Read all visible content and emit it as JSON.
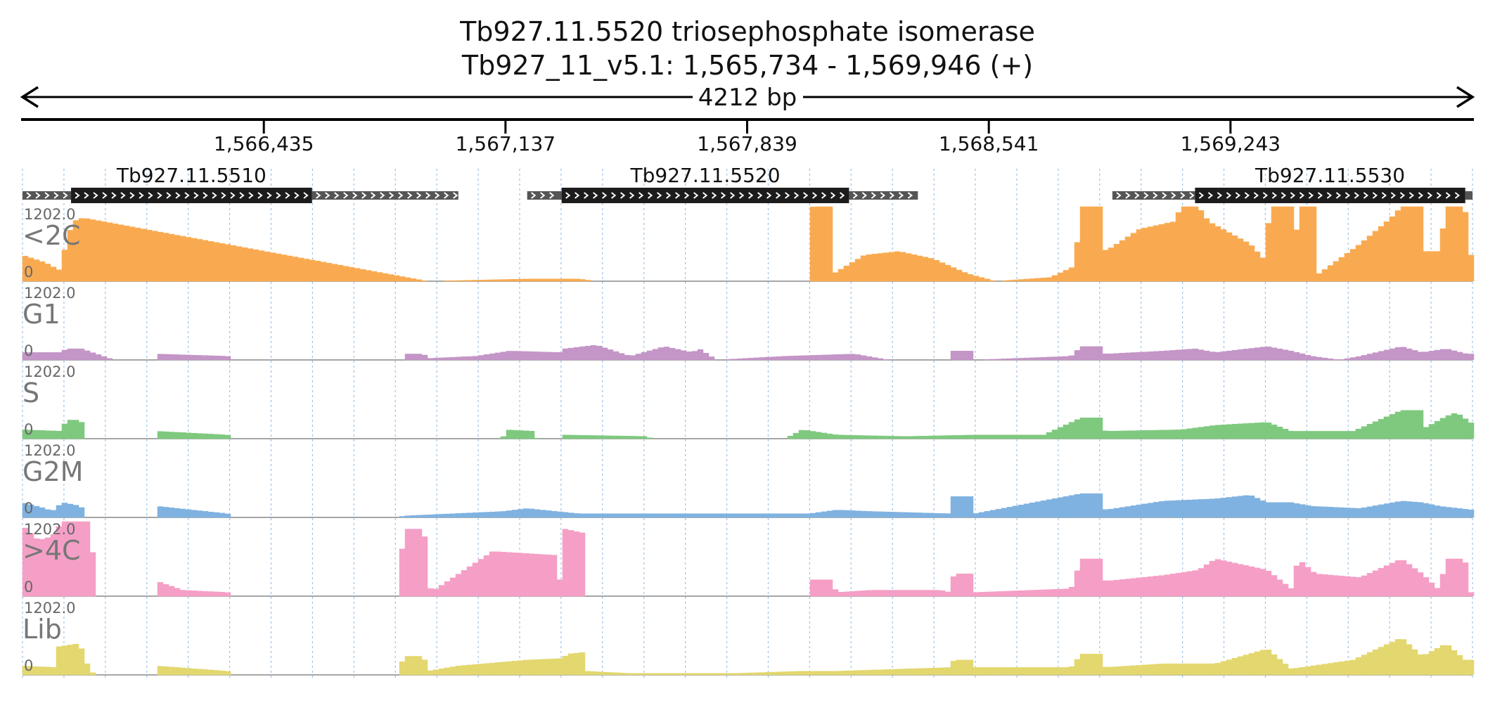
{
  "header": {
    "title": "Tb927.11.5520  triosephosphate isomerase",
    "location": "Tb927_11_v5.1: 1,565,734 - 1,569,946 (+)",
    "span_label": "4212 bp"
  },
  "ruler": {
    "start": 1565734,
    "end": 1569946,
    "ticks": [
      {
        "pos": 1566435,
        "label": "1,566,435"
      },
      {
        "pos": 1567137,
        "label": "1,567,137"
      },
      {
        "pos": 1567839,
        "label": "1,567,839"
      },
      {
        "pos": 1568541,
        "label": "1,568,541"
      },
      {
        "pos": 1569243,
        "label": "1,569,243"
      }
    ]
  },
  "genes": [
    {
      "name": "Tb927.11.5510",
      "utr5": [
        1565734,
        1565875
      ],
      "cds": [
        1565875,
        1566575
      ],
      "utr3": [
        1566575,
        1567000
      ]
    },
    {
      "name": "Tb927.11.5520",
      "utr5": [
        1567200,
        1567300
      ],
      "cds": [
        1567300,
        1568135
      ],
      "utr3": [
        1568135,
        1568335
      ]
    },
    {
      "name": "Tb927.11.5530",
      "utr5": [
        1568900,
        1569140
      ],
      "cds": [
        1569140,
        1569925
      ],
      "utr3": [
        1569925,
        1569946
      ]
    }
  ],
  "tracks_max_label": "1202.0",
  "tracks_zero_label": "0",
  "tracks": [
    {
      "name": "<2C",
      "color": "#f9aa50",
      "level": 1,
      "series": [
        [
          1565734,
          0.35
        ],
        [
          1565800,
          0.25
        ],
        [
          1565840,
          0.15
        ],
        [
          1565880,
          0.8
        ],
        [
          1565910,
          0.85
        ],
        [
          1566910,
          0.0
        ],
        [
          1567200,
          0.03
        ],
        [
          1567350,
          0.03
        ],
        [
          1567400,
          0.0
        ],
        [
          1568020,
          0.0
        ],
        [
          1568030,
          1.0
        ],
        [
          1568085,
          1.0
        ],
        [
          1568090,
          0.1
        ],
        [
          1568180,
          0.35
        ],
        [
          1568280,
          0.4
        ],
        [
          1568380,
          0.3
        ],
        [
          1568480,
          0.1
        ],
        [
          1568560,
          0.0
        ],
        [
          1568720,
          0.05
        ],
        [
          1568790,
          0.2
        ],
        [
          1568810,
          1.0
        ],
        [
          1568870,
          1.0
        ],
        [
          1568880,
          0.4
        ],
        [
          1568980,
          0.7
        ],
        [
          1569080,
          0.8
        ],
        [
          1569100,
          1.0
        ],
        [
          1569150,
          1.0
        ],
        [
          1569180,
          0.8
        ],
        [
          1569300,
          0.5
        ],
        [
          1569340,
          0.3
        ],
        [
          1569360,
          1.0
        ],
        [
          1569420,
          1.0
        ],
        [
          1569425,
          0.0
        ],
        [
          1569440,
          1.0
        ],
        [
          1569490,
          1.0
        ],
        [
          1569500,
          0.1
        ],
        [
          1569620,
          0.5
        ],
        [
          1569710,
          0.85
        ],
        [
          1569740,
          1.0
        ],
        [
          1569800,
          1.0
        ],
        [
          1569810,
          0.4
        ],
        [
          1569850,
          0.4
        ],
        [
          1569870,
          1.0
        ],
        [
          1569925,
          1.0
        ],
        [
          1569930,
          0.35
        ],
        [
          1569946,
          0.35
        ]
      ]
    },
    {
      "name": "G1",
      "color": "#c495c7",
      "level": 0.2,
      "series": [
        [
          1565734,
          0.1
        ],
        [
          1565850,
          0.1
        ],
        [
          1565860,
          0.15
        ],
        [
          1565905,
          0.15
        ],
        [
          1566000,
          0.0
        ],
        [
          1566120,
          0.0
        ],
        [
          1566125,
          0.08
        ],
        [
          1566330,
          0.05
        ],
        [
          1566340,
          0.0
        ],
        [
          1566840,
          0.0
        ],
        [
          1566850,
          0.08
        ],
        [
          1566900,
          0.08
        ],
        [
          1566910,
          0.02
        ],
        [
          1567050,
          0.05
        ],
        [
          1567150,
          0.12
        ],
        [
          1567300,
          0.1
        ],
        [
          1567310,
          0.15
        ],
        [
          1567400,
          0.2
        ],
        [
          1567500,
          0.05
        ],
        [
          1567600,
          0.18
        ],
        [
          1567680,
          0.1
        ],
        [
          1567700,
          0.15
        ],
        [
          1567750,
          0.0
        ],
        [
          1567950,
          0.05
        ],
        [
          1568150,
          0.08
        ],
        [
          1568250,
          0.0
        ],
        [
          1568430,
          0.0
        ],
        [
          1568435,
          0.12
        ],
        [
          1568490,
          0.12
        ],
        [
          1568500,
          0.0
        ],
        [
          1568780,
          0.05
        ],
        [
          1568810,
          0.18
        ],
        [
          1568870,
          0.18
        ],
        [
          1568880,
          0.08
        ],
        [
          1569050,
          0.12
        ],
        [
          1569140,
          0.15
        ],
        [
          1569200,
          0.1
        ],
        [
          1569350,
          0.18
        ],
        [
          1569420,
          0.12
        ],
        [
          1569480,
          0.05
        ],
        [
          1569560,
          0.0
        ],
        [
          1569620,
          0.05
        ],
        [
          1569740,
          0.18
        ],
        [
          1569800,
          0.1
        ],
        [
          1569870,
          0.15
        ],
        [
          1569930,
          0.08
        ],
        [
          1569946,
          0.08
        ]
      ]
    },
    {
      "name": "S",
      "color": "#7fc97f",
      "level": 0.2,
      "series": [
        [
          1565734,
          0.12
        ],
        [
          1565850,
          0.1
        ],
        [
          1565860,
          0.25
        ],
        [
          1565905,
          0.25
        ],
        [
          1565910,
          0.0
        ],
        [
          1566120,
          0.0
        ],
        [
          1566125,
          0.1
        ],
        [
          1566330,
          0.05
        ],
        [
          1566340,
          0.0
        ],
        [
          1567130,
          0.0
        ],
        [
          1567135,
          0.12
        ],
        [
          1567220,
          0.1
        ],
        [
          1567230,
          0.0
        ],
        [
          1567300,
          0.0
        ],
        [
          1567305,
          0.05
        ],
        [
          1567550,
          0.03
        ],
        [
          1567560,
          0.0
        ],
        [
          1567950,
          0.0
        ],
        [
          1568000,
          0.12
        ],
        [
          1568100,
          0.05
        ],
        [
          1568300,
          0.03
        ],
        [
          1568500,
          0.05
        ],
        [
          1568700,
          0.05
        ],
        [
          1568810,
          0.28
        ],
        [
          1568870,
          0.28
        ],
        [
          1568880,
          0.1
        ],
        [
          1569100,
          0.12
        ],
        [
          1569200,
          0.18
        ],
        [
          1569350,
          0.22
        ],
        [
          1569420,
          0.1
        ],
        [
          1569600,
          0.1
        ],
        [
          1569740,
          0.38
        ],
        [
          1569800,
          0.38
        ],
        [
          1569810,
          0.15
        ],
        [
          1569850,
          0.25
        ],
        [
          1569870,
          0.3
        ],
        [
          1569900,
          0.35
        ],
        [
          1569946,
          0.2
        ]
      ]
    },
    {
      "name": "G2M",
      "color": "#7fb2e0",
      "level": 0.2,
      "series": [
        [
          1565734,
          0.2
        ],
        [
          1565800,
          0.12
        ],
        [
          1565820,
          0.08
        ],
        [
          1565850,
          0.2
        ],
        [
          1565905,
          0.15
        ],
        [
          1565910,
          0.0
        ],
        [
          1566120,
          0.0
        ],
        [
          1566125,
          0.15
        ],
        [
          1566330,
          0.05
        ],
        [
          1566340,
          0.0
        ],
        [
          1566830,
          0.0
        ],
        [
          1566840,
          0.02
        ],
        [
          1567130,
          0.08
        ],
        [
          1567200,
          0.12
        ],
        [
          1567350,
          0.05
        ],
        [
          1568020,
          0.05
        ],
        [
          1568100,
          0.1
        ],
        [
          1568200,
          0.08
        ],
        [
          1568430,
          0.05
        ],
        [
          1568435,
          0.28
        ],
        [
          1568490,
          0.28
        ],
        [
          1568500,
          0.05
        ],
        [
          1568810,
          0.32
        ],
        [
          1568870,
          0.32
        ],
        [
          1568880,
          0.1
        ],
        [
          1569050,
          0.22
        ],
        [
          1569200,
          0.25
        ],
        [
          1569300,
          0.3
        ],
        [
          1569350,
          0.2
        ],
        [
          1569420,
          0.2
        ],
        [
          1569480,
          0.15
        ],
        [
          1569620,
          0.12
        ],
        [
          1569740,
          0.22
        ],
        [
          1569800,
          0.2
        ],
        [
          1569850,
          0.15
        ],
        [
          1569946,
          0.1
        ]
      ]
    },
    {
      "name": ">4C",
      "color": "#f59fc6",
      "level": 1,
      "series": [
        [
          1565734,
          0.95
        ],
        [
          1565780,
          0.75
        ],
        [
          1565820,
          0.8
        ],
        [
          1565850,
          1.0
        ],
        [
          1565930,
          1.0
        ],
        [
          1565950,
          0.0
        ],
        [
          1566120,
          0.0
        ],
        [
          1566125,
          0.2
        ],
        [
          1566200,
          0.08
        ],
        [
          1566330,
          0.05
        ],
        [
          1566340,
          0.0
        ],
        [
          1566830,
          0.0
        ],
        [
          1566840,
          0.9
        ],
        [
          1566900,
          0.9
        ],
        [
          1566920,
          0.05
        ],
        [
          1567100,
          0.6
        ],
        [
          1567280,
          0.55
        ],
        [
          1567300,
          0.1
        ],
        [
          1567310,
          0.9
        ],
        [
          1567360,
          0.85
        ],
        [
          1567370,
          0.0
        ],
        [
          1568020,
          0.0
        ],
        [
          1568030,
          0.22
        ],
        [
          1568080,
          0.22
        ],
        [
          1568100,
          0.05
        ],
        [
          1568200,
          0.08
        ],
        [
          1568400,
          0.08
        ],
        [
          1568430,
          0.05
        ],
        [
          1568440,
          0.3
        ],
        [
          1568490,
          0.3
        ],
        [
          1568500,
          0.05
        ],
        [
          1568780,
          0.1
        ],
        [
          1568810,
          0.5
        ],
        [
          1568870,
          0.5
        ],
        [
          1568880,
          0.2
        ],
        [
          1569050,
          0.28
        ],
        [
          1569150,
          0.35
        ],
        [
          1569200,
          0.5
        ],
        [
          1569350,
          0.35
        ],
        [
          1569420,
          0.1
        ],
        [
          1569440,
          0.5
        ],
        [
          1569490,
          0.3
        ],
        [
          1569620,
          0.25
        ],
        [
          1569740,
          0.5
        ],
        [
          1569800,
          0.3
        ],
        [
          1569850,
          0.08
        ],
        [
          1569870,
          0.5
        ],
        [
          1569925,
          0.5
        ],
        [
          1569930,
          0.05
        ],
        [
          1569946,
          0.05
        ]
      ]
    },
    {
      "name": "Lib",
      "color": "#e3d76f",
      "level": 0.2,
      "series": [
        [
          1565734,
          0.12
        ],
        [
          1565830,
          0.1
        ],
        [
          1565840,
          0.38
        ],
        [
          1565900,
          0.42
        ],
        [
          1565930,
          0.05
        ],
        [
          1565950,
          0.0
        ],
        [
          1566120,
          0.0
        ],
        [
          1566125,
          0.12
        ],
        [
          1566330,
          0.05
        ],
        [
          1566340,
          0.0
        ],
        [
          1566830,
          0.0
        ],
        [
          1566840,
          0.25
        ],
        [
          1566900,
          0.25
        ],
        [
          1566910,
          0.05
        ],
        [
          1567000,
          0.12
        ],
        [
          1567200,
          0.2
        ],
        [
          1567300,
          0.22
        ],
        [
          1567320,
          0.28
        ],
        [
          1567360,
          0.3
        ],
        [
          1567370,
          0.05
        ],
        [
          1567500,
          0.02
        ],
        [
          1567800,
          0.02
        ],
        [
          1568000,
          0.05
        ],
        [
          1568100,
          0.05
        ],
        [
          1568430,
          0.1
        ],
        [
          1568440,
          0.2
        ],
        [
          1568490,
          0.2
        ],
        [
          1568500,
          0.1
        ],
        [
          1568780,
          0.1
        ],
        [
          1568810,
          0.28
        ],
        [
          1568870,
          0.28
        ],
        [
          1568880,
          0.1
        ],
        [
          1569050,
          0.15
        ],
        [
          1569200,
          0.15
        ],
        [
          1569350,
          0.35
        ],
        [
          1569420,
          0.08
        ],
        [
          1569600,
          0.2
        ],
        [
          1569740,
          0.5
        ],
        [
          1569800,
          0.25
        ],
        [
          1569870,
          0.42
        ],
        [
          1569925,
          0.2
        ],
        [
          1569946,
          0.2
        ]
      ]
    }
  ]
}
